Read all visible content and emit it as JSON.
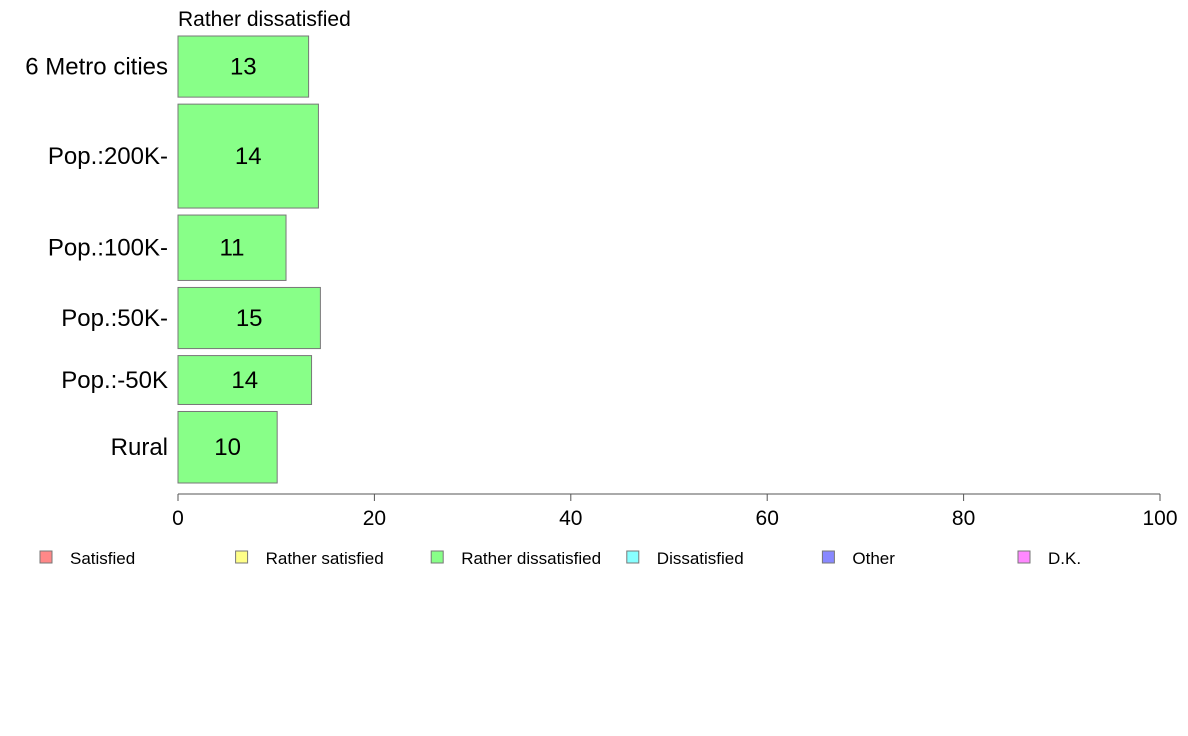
{
  "chart_data": {
    "type": "bar",
    "orientation": "horizontal",
    "title": "Rather dissatisfied",
    "categories": [
      "6 Metro cities",
      "Pop.:200K-",
      "Pop.:100K-",
      "Pop.:50K-",
      "Pop.:-50K",
      "Rural"
    ],
    "series": [
      {
        "name": "Rather dissatisfied",
        "values": [
          13.3,
          14.3,
          11.0,
          14.5,
          13.6,
          10.1
        ],
        "labels": [
          "13",
          "14",
          "11",
          "15",
          "14",
          "10"
        ]
      }
    ],
    "bar_weights": [
      1.0,
      1.7,
      1.07,
      1.0,
      0.8,
      1.17
    ],
    "xlim": [
      0,
      100
    ],
    "xticks": [
      "0",
      "20",
      "40",
      "60",
      "80",
      "100"
    ],
    "grid": false,
    "bar_color": "#88ff88",
    "legend": {
      "placement": "bottom",
      "items": [
        {
          "label": "Satisfied",
          "color": "#ff8888"
        },
        {
          "label": "Rather satisfied",
          "color": "#ffff88"
        },
        {
          "label": "Rather dissatisfied",
          "color": "#88ff88"
        },
        {
          "label": "Dissatisfied",
          "color": "#88ffff"
        },
        {
          "label": "Other",
          "color": "#8888ff"
        },
        {
          "label": "D.K.",
          "color": "#ff88ff"
        }
      ]
    }
  }
}
